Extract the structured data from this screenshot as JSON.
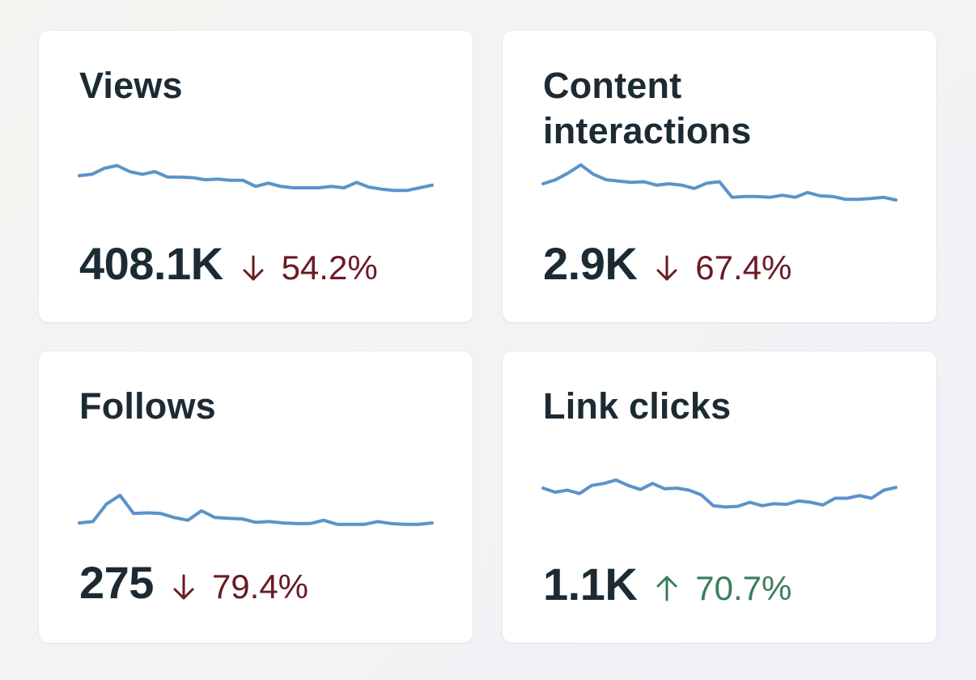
{
  "cards": [
    {
      "title": "Views",
      "value": "408.1K",
      "change": "54.2%",
      "direction": "down",
      "trend": [
        30,
        32,
        41,
        45,
        36,
        32,
        36,
        28,
        28,
        27,
        24,
        25,
        23,
        23,
        14,
        19,
        14,
        12,
        12,
        12,
        14,
        12,
        20,
        13,
        10,
        8,
        8,
        12,
        16
      ]
    },
    {
      "title": "Content interactions",
      "value": "2.9K",
      "change": "67.4%",
      "direction": "down",
      "trend": [
        30,
        36,
        46,
        58,
        44,
        36,
        34,
        32,
        33,
        28,
        30,
        28,
        23,
        31,
        33,
        10,
        11,
        11,
        10,
        13,
        10,
        17,
        12,
        11,
        7,
        7,
        8,
        10,
        6
      ]
    },
    {
      "title": "Follows",
      "value": "275",
      "change": "79.4%",
      "direction": "down",
      "trend": [
        12,
        14,
        40,
        53,
        26,
        27,
        26,
        20,
        16,
        30,
        20,
        19,
        18,
        13,
        14,
        12,
        11,
        11,
        16,
        10,
        10,
        10,
        14,
        11,
        10,
        10,
        12
      ]
    },
    {
      "title": "Link clicks",
      "value": "1.1K",
      "change": "70.7%",
      "direction": "up",
      "trend": [
        48,
        42,
        45,
        40,
        52,
        55,
        60,
        52,
        46,
        55,
        47,
        48,
        45,
        38,
        22,
        20,
        21,
        27,
        22,
        25,
        24,
        29,
        27,
        23,
        33,
        33,
        37,
        33,
        45,
        49
      ]
    }
  ],
  "colors": {
    "sparkline": "#5b93c9",
    "negative": "#6b1a22",
    "positive": "#3b7d5c",
    "text": "#1c2b33"
  },
  "icons": {
    "down": "arrow-down-icon",
    "up": "arrow-up-icon"
  }
}
